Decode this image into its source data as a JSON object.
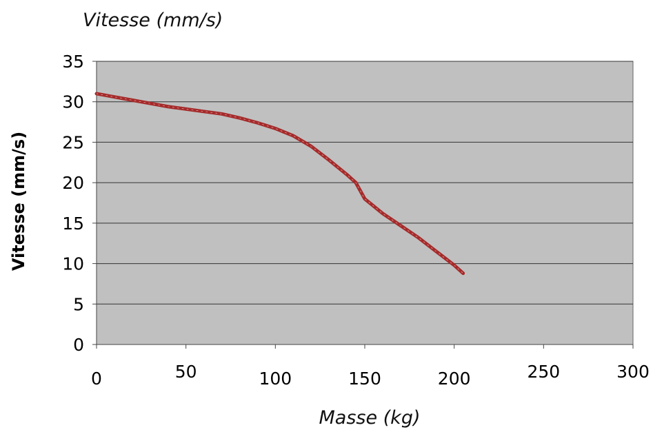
{
  "chart_data": {
    "type": "line",
    "title": "Vitesse (mm/s)",
    "xlabel": "Masse (kg)",
    "ylabel": "Vitesse (mm/s)",
    "xlim": [
      0,
      300
    ],
    "ylim": [
      0,
      35
    ],
    "x_ticks": [
      0,
      50,
      100,
      150,
      200,
      250,
      300
    ],
    "y_ticks": [
      0,
      5,
      10,
      15,
      20,
      25,
      30,
      35
    ],
    "grid": "horizontal",
    "legend": "none",
    "colors": {
      "plot_background": "#c0c0c0",
      "series": "#a52a2a",
      "grid": "#333333"
    },
    "series": [
      {
        "x": [
          0,
          10,
          20,
          30,
          40,
          50,
          60,
          70,
          80,
          90,
          100,
          110,
          120,
          130,
          140,
          145,
          150,
          160,
          170,
          180,
          190,
          200,
          205
        ],
        "y": [
          31,
          30.6,
          30.2,
          29.8,
          29.4,
          29.1,
          28.8,
          28.5,
          28.0,
          27.4,
          26.7,
          25.8,
          24.5,
          22.8,
          21.0,
          20.0,
          18.0,
          16.2,
          14.7,
          13.2,
          11.5,
          9.8,
          8.8
        ]
      }
    ]
  }
}
